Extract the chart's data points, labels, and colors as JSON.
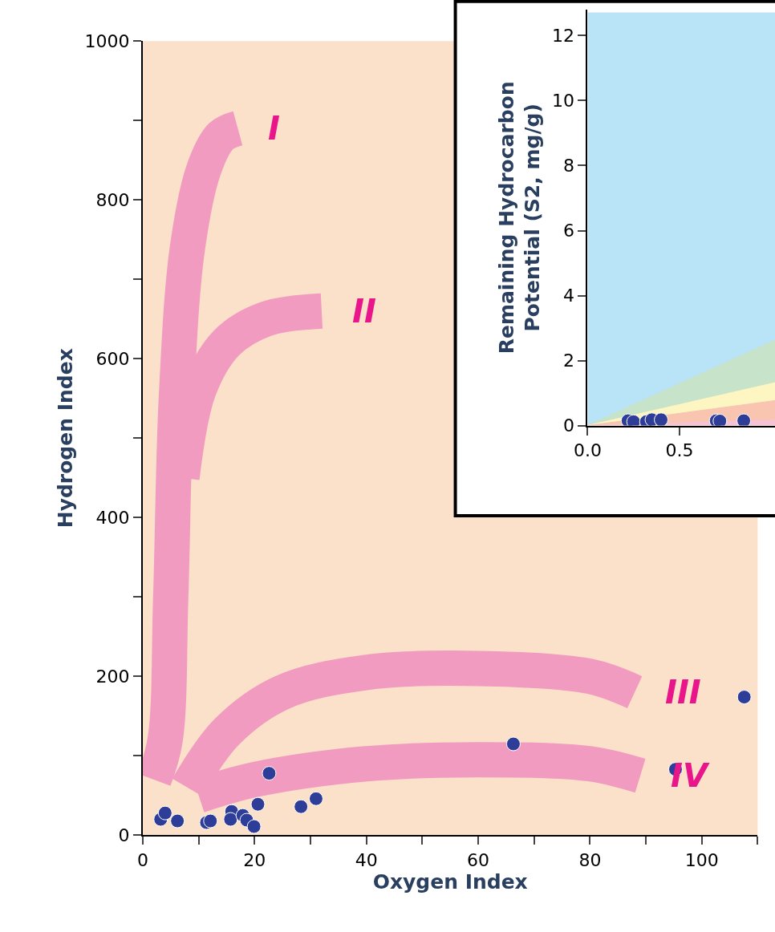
{
  "chart_data": [
    {
      "type": "scatter",
      "xlabel": "Oxygen Index",
      "ylabel": "Hydrogen Index",
      "xlim": [
        0,
        110
      ],
      "ylim": [
        0,
        1000
      ],
      "xticks": [
        0,
        {
          "value": 10,
          "label": null
        },
        20,
        {
          "value": 30,
          "label": null
        },
        40,
        {
          "value": 50,
          "label": null
        },
        60,
        {
          "value": 70,
          "label": null
        },
        80,
        {
          "value": 90,
          "label": null
        },
        100,
        {
          "value": 110,
          "label": null
        }
      ],
      "yticks": [
        0,
        {
          "value": 100,
          "label": null
        },
        200,
        {
          "value": 300,
          "label": null
        },
        400,
        {
          "value": 500,
          "label": null
        },
        600,
        {
          "value": 700,
          "label": null
        },
        800,
        {
          "value": 900,
          "label": null
        },
        1000
      ],
      "grid": false,
      "series": [
        {
          "type": "line",
          "name": "I",
          "color": "#f29bc1",
          "x": [
            2,
            4,
            5,
            6,
            8,
            11,
            14,
            17
          ],
          "values": [
            70,
            120,
            300,
            550,
            740,
            840,
            880,
            890
          ]
        },
        {
          "type": "line",
          "name": "II",
          "color": "#f29bc1",
          "x": [
            7,
            10,
            15,
            22,
            32
          ],
          "values": [
            450,
            560,
            620,
            650,
            660
          ]
        },
        {
          "type": "line",
          "name": "III",
          "color": "#f29bc1",
          "x": [
            8,
            15,
            25,
            40,
            60,
            80,
            88
          ],
          "values": [
            60,
            130,
            180,
            205,
            210,
            200,
            180
          ]
        },
        {
          "type": "line",
          "name": "IV",
          "color": "#f29bc1",
          "x": [
            10,
            20,
            40,
            60,
            80,
            89
          ],
          "values": [
            50,
            70,
            90,
            95,
            90,
            75
          ]
        },
        {
          "color": "#2e3d98",
          "marker": "circle",
          "x": [
            3.2,
            4,
            6.2,
            11.4,
            12.1,
            15.9,
            15.7,
            17.9,
            18.6,
            19.9,
            20.6,
            22.6,
            28.3,
            31,
            66.3,
            95.3,
            107.6
          ],
          "values": [
            20,
            28,
            18,
            16,
            18,
            30,
            20,
            25,
            19,
            11,
            39,
            78,
            36,
            46,
            115,
            83,
            174
          ]
        }
      ]
    },
    {
      "type": "area",
      "ylabel": "Remaining Hydrocarbon\nPotential (S2, mg/g)",
      "xlim": [
        0,
        1.02
      ],
      "ylim": [
        0,
        12.8
      ],
      "xticks": [
        {
          "value": 0,
          "label": "0.0"
        },
        {
          "value": 0.5,
          "label": "0.5"
        }
      ],
      "yticks": [
        0,
        2,
        4,
        6,
        8,
        10,
        12
      ],
      "grid": false,
      "series": [
        {
          "color": "#b9e3f6",
          "x": [
            0,
            1.02
          ],
          "values": [
            12.7,
            12.7
          ]
        },
        {
          "color": "#c7e3c9",
          "x": [
            0,
            1.02
          ],
          "values": [
            0,
            2.63
          ]
        },
        {
          "color": "#fdf6c3",
          "x": [
            0,
            1.02
          ],
          "values": [
            0,
            1.32
          ]
        },
        {
          "color": "#f9c4b0",
          "x": [
            0,
            1.02
          ],
          "values": [
            0,
            0.77
          ]
        },
        {
          "color": "#f6c3d6",
          "x": [
            0,
            1.02
          ],
          "values": [
            0,
            0.17
          ]
        },
        {
          "type": "scatter",
          "color": "#2e3d98",
          "marker": "circle",
          "x": [
            0.22,
            0.25,
            0.32,
            0.35,
            0.4,
            0.7,
            0.72,
            0.85
          ],
          "values": [
            0.15,
            0.12,
            0.12,
            0.18,
            0.18,
            0.15,
            0.14,
            0.15
          ]
        }
      ]
    }
  ]
}
